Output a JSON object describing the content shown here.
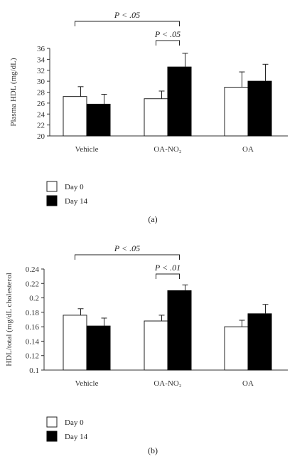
{
  "chart_data": [
    {
      "type": "bar",
      "panel_label": "(a)",
      "ylabel": "Plasma HDL (mg/dL)",
      "xlabel": "",
      "categories": [
        "Vehicle",
        "OA-NO₂",
        "OA"
      ],
      "ylim": [
        20,
        36
      ],
      "yticks": [
        20,
        22,
        24,
        26,
        28,
        30,
        32,
        34,
        36
      ],
      "series": [
        {
          "name": "Day 0",
          "values": [
            27.2,
            26.8,
            28.9
          ],
          "errors": [
            1.8,
            1.4,
            2.8
          ]
        },
        {
          "name": "Day 14",
          "values": [
            25.8,
            32.6,
            30.0
          ],
          "errors": [
            1.8,
            2.5,
            3.1
          ]
        }
      ],
      "annotations": [
        {
          "text": "P < .05",
          "from": {
            "category": 0,
            "series": 0
          },
          "to": {
            "category": 1,
            "series": 1
          }
        },
        {
          "text": "P < .05",
          "from": {
            "category": 1,
            "series": 0
          },
          "to": {
            "category": 1,
            "series": 1
          }
        }
      ],
      "legend": {
        "position": "bottom-left",
        "entries": [
          "Day 0",
          "Day 14"
        ]
      }
    },
    {
      "type": "bar",
      "panel_label": "(b)",
      "ylabel": "HDL/total (mg/dL cholesterol",
      "xlabel": "",
      "categories": [
        "Vehicle",
        "OA-NO₂",
        "OA"
      ],
      "ylim": [
        0.1,
        0.24
      ],
      "yticks": [
        0.1,
        0.12,
        0.14,
        0.16,
        0.18,
        0.2,
        0.22,
        0.24
      ],
      "yticklabels": [
        "0.1",
        "0.12",
        "0.14",
        "0.16",
        "0.18",
        "0.2",
        "0.22",
        "0.24"
      ],
      "series": [
        {
          "name": "Day 0",
          "values": [
            0.176,
            0.168,
            0.16
          ],
          "errors": [
            0.009,
            0.008,
            0.009
          ]
        },
        {
          "name": "Day 14",
          "values": [
            0.161,
            0.21,
            0.178
          ],
          "errors": [
            0.011,
            0.008,
            0.013
          ]
        }
      ],
      "annotations": [
        {
          "text": "P < .05",
          "from": {
            "category": 0,
            "series": 0
          },
          "to": {
            "category": 1,
            "series": 1
          }
        },
        {
          "text": "P < .01",
          "from": {
            "category": 1,
            "series": 0
          },
          "to": {
            "category": 1,
            "series": 1
          }
        }
      ],
      "legend": {
        "position": "bottom-left",
        "entries": [
          "Day 0",
          "Day 14"
        ]
      }
    }
  ]
}
